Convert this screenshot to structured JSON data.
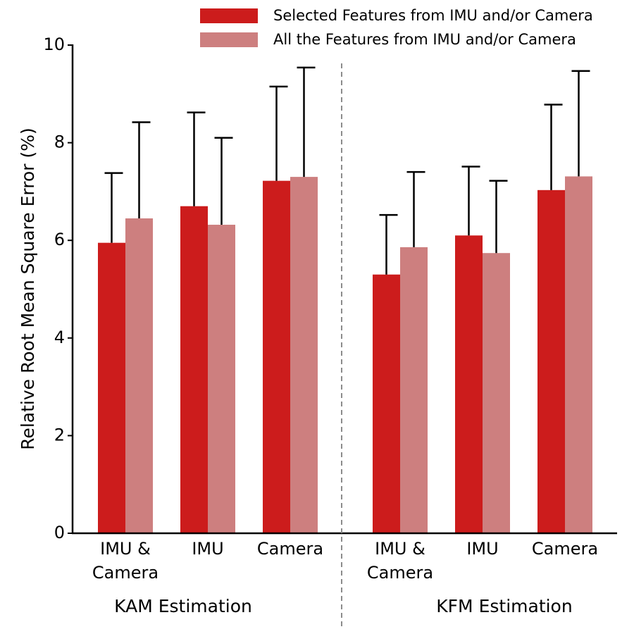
{
  "chart_data": {
    "type": "bar",
    "ylabel": "Relative Root Mean Square Error (%)",
    "ylim": [
      0,
      10
    ],
    "yticks": [
      "0",
      "2",
      "4",
      "6",
      "8",
      "10"
    ],
    "grid": false,
    "legend_position": "top-right",
    "groups": [
      {
        "label": "KAM Estimation",
        "categories": [
          [
            "IMU &",
            "Camera"
          ],
          [
            "IMU"
          ],
          [
            "Camera"
          ]
        ]
      },
      {
        "label": "KFM Estimation",
        "categories": [
          [
            "IMU &",
            "Camera"
          ],
          [
            "IMU"
          ],
          [
            "Camera"
          ]
        ]
      }
    ],
    "series": [
      {
        "name": "Selected Features from IMU and/or Camera",
        "color": "#cc1c1c",
        "values": [
          5.95,
          6.7,
          7.22,
          5.3,
          6.1,
          7.03
        ],
        "error": [
          1.43,
          1.92,
          1.93,
          1.22,
          1.41,
          1.75
        ]
      },
      {
        "name": "All the Features from IMU and/or Camera",
        "color": "#cd7f7f",
        "values": [
          6.45,
          6.32,
          7.3,
          5.86,
          5.74,
          7.31
        ],
        "error": [
          1.97,
          1.78,
          2.24,
          1.54,
          1.48,
          2.16
        ]
      }
    ]
  }
}
